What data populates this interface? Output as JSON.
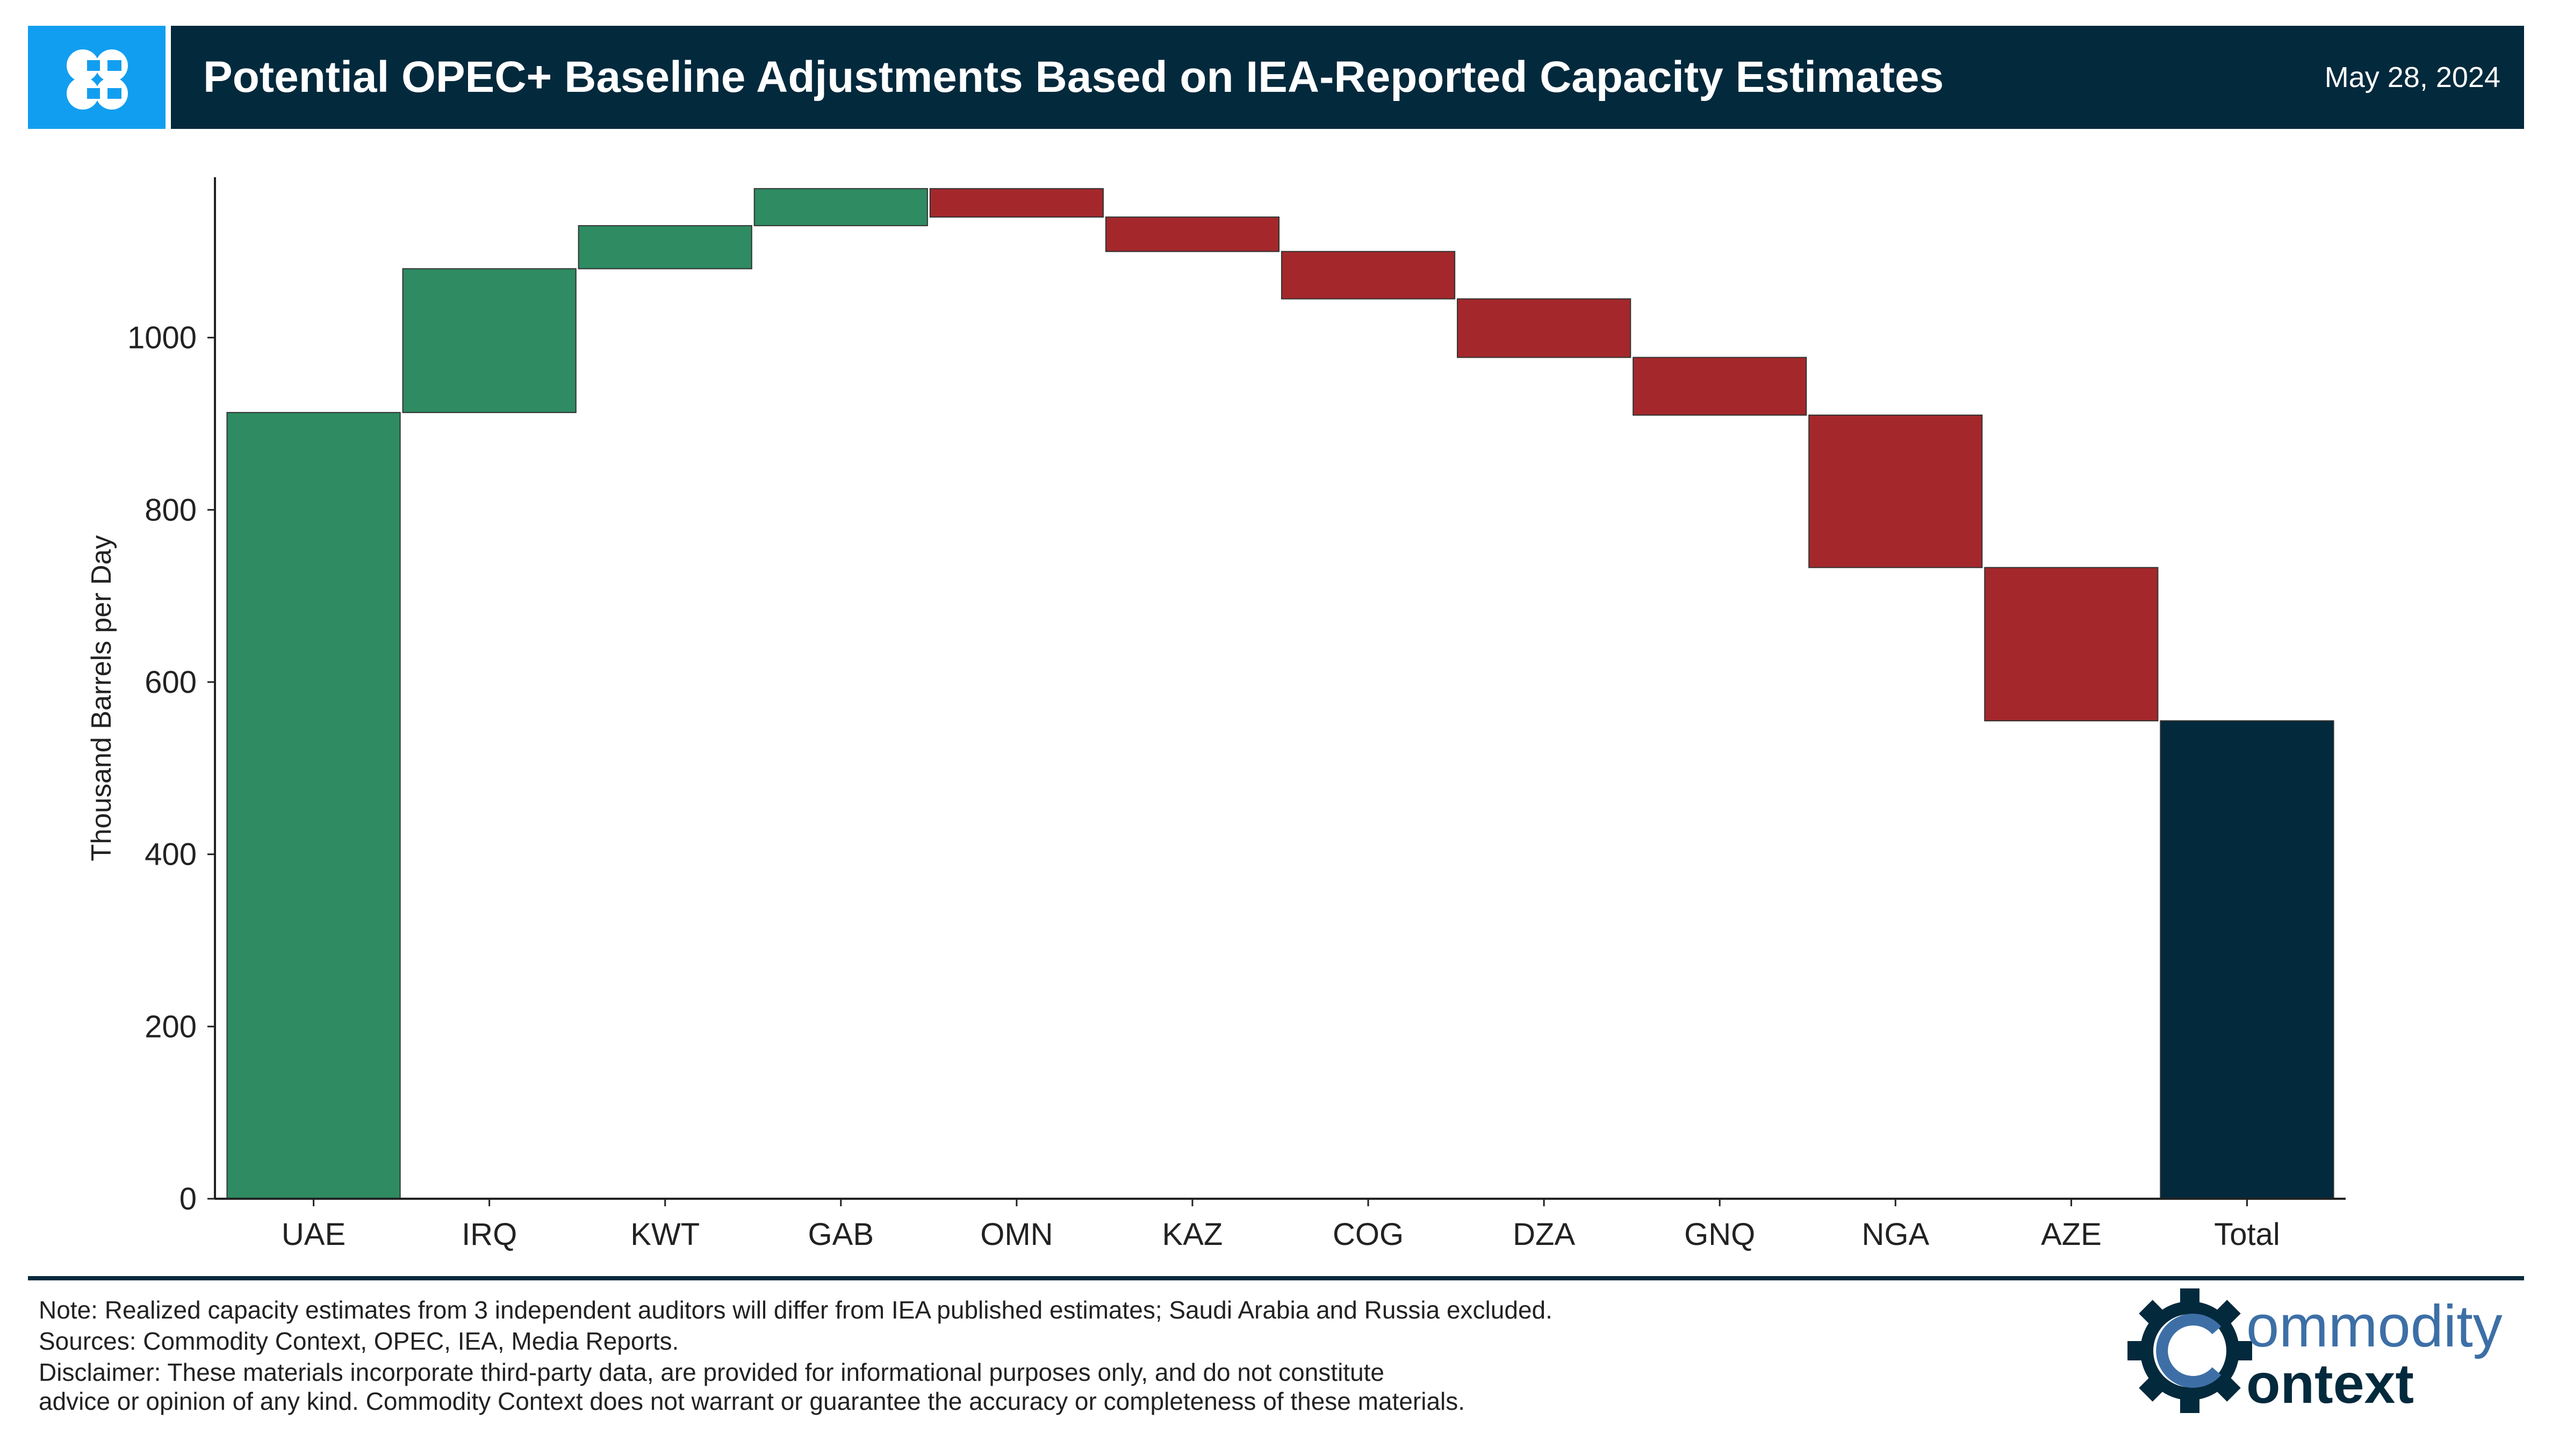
{
  "header": {
    "title": "Potential OPEC+ Baseline Adjustments Based on IEA-Reported Capacity Estimates",
    "date": "May 28, 2024",
    "logo_icon": "opec-logo-icon"
  },
  "chart_data": {
    "type": "waterfall",
    "title": "",
    "xlabel": "",
    "ylabel": "Thousand Barrels per Day",
    "ylim": [
      0,
      1180
    ],
    "yticks": [
      0,
      200,
      400,
      600,
      800,
      1000
    ],
    "grid": false,
    "categories": [
      "UAE",
      "IRQ",
      "KWT",
      "GAB",
      "OMN",
      "KAZ",
      "COG",
      "DZA",
      "GNQ",
      "NGA",
      "AZE",
      "Total"
    ],
    "values": [
      913,
      167,
      50,
      43,
      -33,
      -40,
      -55,
      -68,
      -67,
      -177,
      -178,
      555
    ],
    "colors": {
      "increase": "#2e8b62",
      "decrease": "#a4282b",
      "total": "#03293c",
      "axis": "#222222"
    }
  },
  "footer": {
    "note": "Note: Realized capacity estimates from 3 independent auditors will differ from IEA published estimates; Saudi Arabia and Russia excluded.",
    "sources": "Sources: Commodity Context, OPEC, IEA, Media Reports.",
    "disclaimer_1": "Disclaimer: These materials incorporate third-party data, are provided for informational purposes only, and do not constitute",
    "disclaimer_2": "advice or opinion of any kind. Commodity Context does not warrant or guarantee the accuracy or completeness of these materials.",
    "brand_top": "ommodity",
    "brand_bottom": "ontext",
    "brand_icon": "gear-c-logo-icon"
  }
}
